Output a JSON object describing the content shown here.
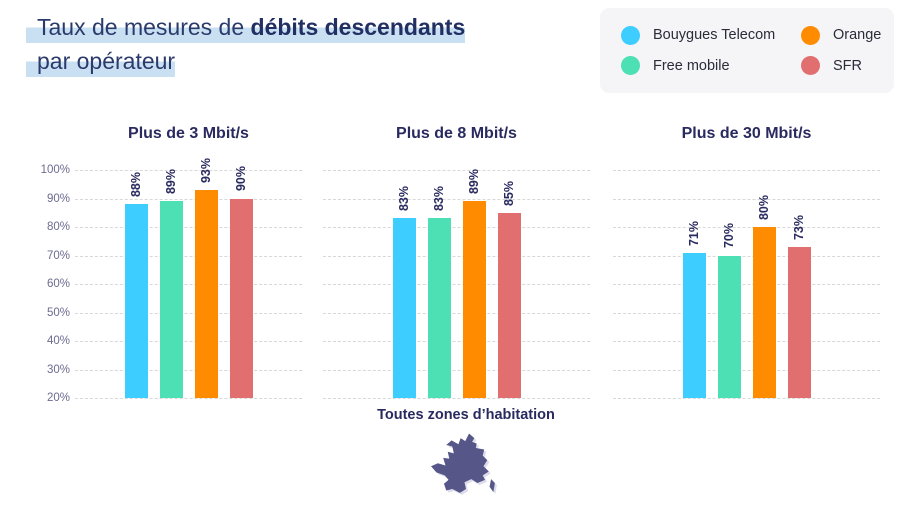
{
  "title": {
    "line1_regular": "Taux de mesures de ",
    "line1_bold": "débits descendants",
    "line2": "par opérateur"
  },
  "legend": {
    "items": [
      {
        "label": "Bouygues Telecom",
        "color": "#3DCDFE"
      },
      {
        "label": "Free mobile",
        "color": "#4EE0B5"
      },
      {
        "label": "Orange",
        "color": "#FF8B00"
      },
      {
        "label": "SFR",
        "color": "#E26F6F"
      }
    ]
  },
  "axis": {
    "tick_labels": [
      "100%",
      "90%",
      "80%",
      "70%",
      "60%",
      "50%",
      "40%",
      "30%",
      "20%"
    ],
    "min": 20,
    "max": 100,
    "step": 10
  },
  "chart_data": [
    {
      "type": "bar",
      "title": "Plus de 3 Mbit/s",
      "categories": [
        "Bouygues Telecom",
        "Free mobile",
        "Orange",
        "SFR"
      ],
      "values": [
        88,
        89,
        93,
        90
      ],
      "value_labels": [
        "88%",
        "89%",
        "93%",
        "90%"
      ],
      "ylim": [
        20,
        100
      ],
      "grid": true,
      "xlabel": "",
      "ylabel": ""
    },
    {
      "type": "bar",
      "title": "Plus de 8 Mbit/s",
      "categories": [
        "Bouygues Telecom",
        "Free mobile",
        "Orange",
        "SFR"
      ],
      "values": [
        83,
        83,
        89,
        85
      ],
      "value_labels": [
        "83%",
        "83%",
        "89%",
        "85%"
      ],
      "ylim": [
        20,
        100
      ],
      "grid": true,
      "xlabel": "",
      "ylabel": ""
    },
    {
      "type": "bar",
      "title": "Plus de 30 Mbit/s",
      "categories": [
        "Bouygues Telecom",
        "Free mobile",
        "Orange",
        "SFR"
      ],
      "values": [
        71,
        70,
        80,
        73
      ],
      "value_labels": [
        "71%",
        "70%",
        "80%",
        "73%"
      ],
      "ylim": [
        20,
        100
      ],
      "grid": true,
      "xlabel": "",
      "ylabel": ""
    }
  ],
  "footer": {
    "zone_label": "Toutes zones d’habitation",
    "map_icon": "france-map"
  },
  "colors": {
    "title_navy": "#292A5F",
    "highlight_blue": "#C9DFF2",
    "grid": "#D8D8D8",
    "tick": "#6B6B90",
    "legend_bg": "#F5F5F8",
    "map": "#565689"
  }
}
